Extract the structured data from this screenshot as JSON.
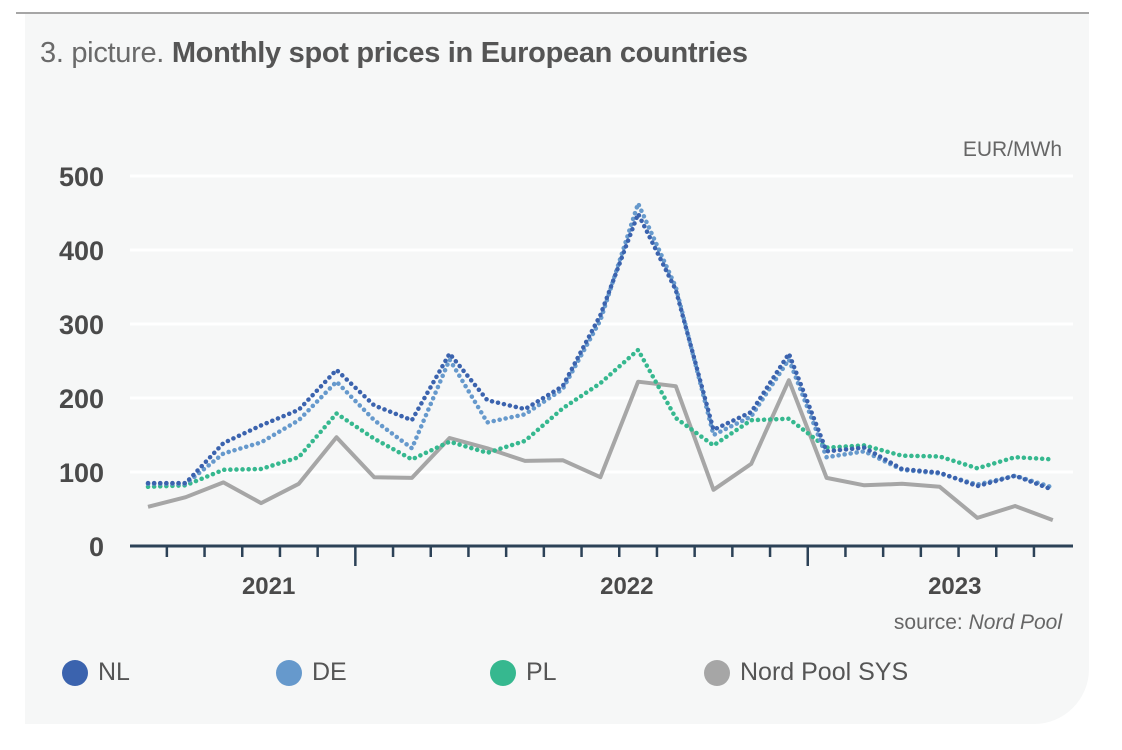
{
  "figure": {
    "title_prefix": "3. picture.",
    "title_main": "Monthly spot prices in European countries",
    "unit_label": "EUR/MWh",
    "source_prefix": "source:",
    "source_name": "Nord Pool"
  },
  "legend": [
    {
      "label": "NL",
      "color": "#3b63ae",
      "series_icon": "circle-marker-icon"
    },
    {
      "label": "DE",
      "color": "#6699cc",
      "series_icon": "circle-marker-icon"
    },
    {
      "label": "PL",
      "color": "#36b88f",
      "series_icon": "circle-marker-icon"
    },
    {
      "label": "Nord Pool SYS",
      "color": "#a6a6a6",
      "series_icon": "circle-marker-icon"
    }
  ],
  "chart_data": {
    "type": "line",
    "title": "Monthly spot prices in European countries",
    "xlabel": "",
    "ylabel": "EUR/MWh",
    "ylim": [
      0,
      500
    ],
    "yticks": [
      0,
      100,
      200,
      300,
      400,
      500
    ],
    "grid": true,
    "legend_position": "bottom",
    "x": [
      "2020-10",
      "2020-11",
      "2020-12",
      "2021-01",
      "2021-02",
      "2021-03",
      "2021-04",
      "2021-05",
      "2021-06",
      "2021-07",
      "2021-08",
      "2021-09",
      "2021-10",
      "2021-11",
      "2021-12",
      "2022-01",
      "2022-02",
      "2022-03",
      "2022-04",
      "2022-05",
      "2022-06",
      "2022-07",
      "2022-08",
      "2022-09",
      "2022-10"
    ],
    "x_year_labels": [
      {
        "label": "2021",
        "at_index": 3.2
      },
      {
        "label": "2022",
        "at_index": 12.7
      },
      {
        "label": "2023",
        "at_index": 21.4
      }
    ],
    "series": [
      {
        "name": "NL",
        "style": "dotted",
        "color": "#3b63ae",
        "values": [
          85,
          85,
          139,
          163,
          184,
          238,
          190,
          170,
          260,
          197,
          185,
          216,
          312,
          449,
          346,
          157,
          181,
          260,
          128,
          133,
          104,
          99,
          81,
          95,
          76
        ]
      },
      {
        "name": "DE",
        "style": "dotted",
        "color": "#6699cc",
        "values": [
          84,
          84,
          125,
          140,
          170,
          222,
          170,
          132,
          252,
          167,
          178,
          212,
          305,
          463,
          350,
          150,
          175,
          252,
          120,
          128,
          103,
          98,
          83,
          95,
          79
        ]
      },
      {
        "name": "PL",
        "style": "dotted",
        "color": "#36b88f",
        "values": [
          80,
          82,
          103,
          104,
          120,
          179,
          145,
          117,
          141,
          126,
          142,
          186,
          220,
          265,
          173,
          136,
          170,
          172,
          133,
          136,
          122,
          121,
          105,
          120,
          117
        ]
      },
      {
        "name": "Nord Pool SYS",
        "style": "solid",
        "color": "#a6a6a6",
        "values": [
          53,
          66,
          86,
          58,
          84,
          147,
          93,
          92,
          146,
          132,
          115,
          116,
          93,
          222,
          216,
          76,
          111,
          224,
          92,
          82,
          84,
          80,
          38,
          54,
          35
        ]
      }
    ]
  }
}
